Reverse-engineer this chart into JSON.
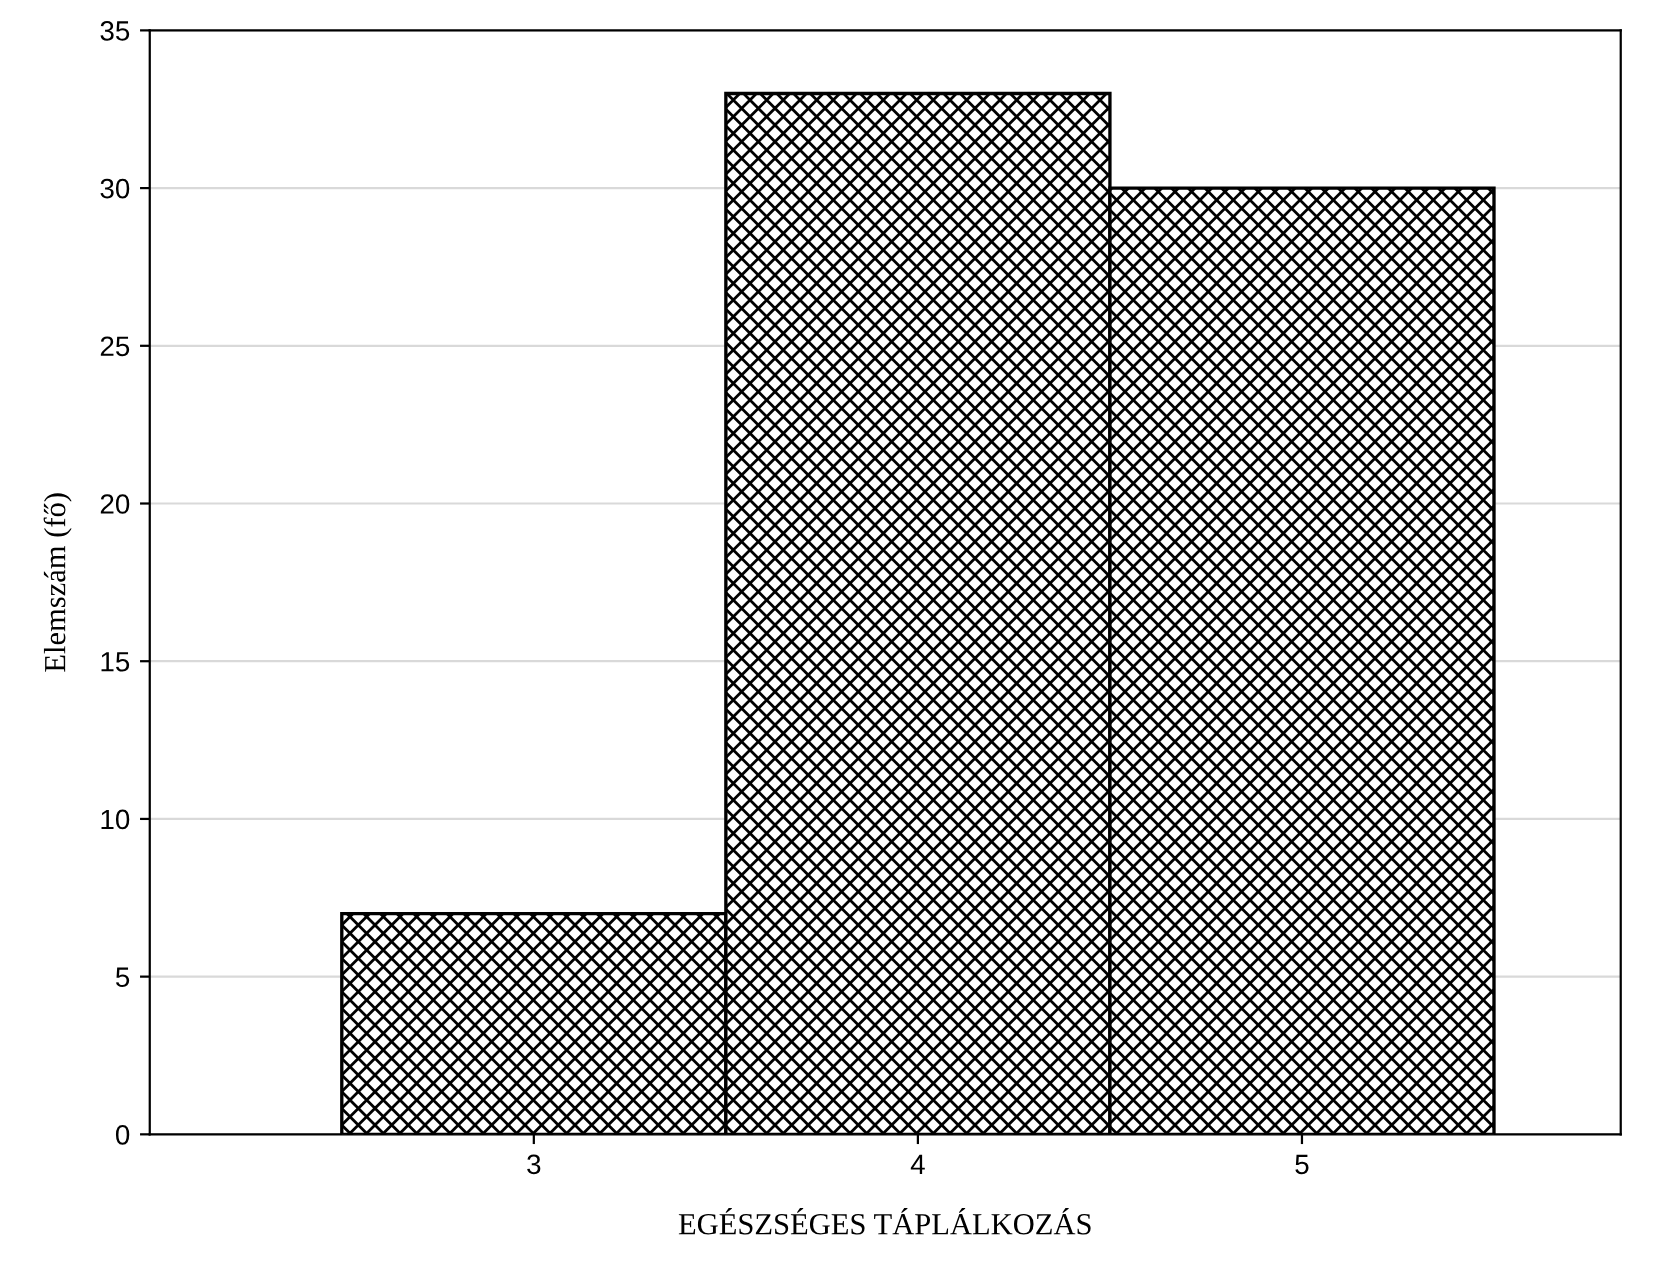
{
  "chart_data": {
    "type": "histogram",
    "xlabel": "EGÉSZSÉGES TÁPLÁLKOZÁS",
    "ylabel": "Elemszám (fő)",
    "bins": [
      2.5,
      3.5,
      4.5,
      5.5
    ],
    "values": [
      7,
      33,
      30
    ],
    "color": "#000000",
    "xlim": [
      2,
      5.83
    ],
    "xticks": [
      3,
      4,
      5
    ],
    "ylim": [
      0,
      35
    ],
    "yticks": [
      0,
      5,
      10,
      15,
      20,
      25,
      30,
      35
    ],
    "grid": "y"
  }
}
